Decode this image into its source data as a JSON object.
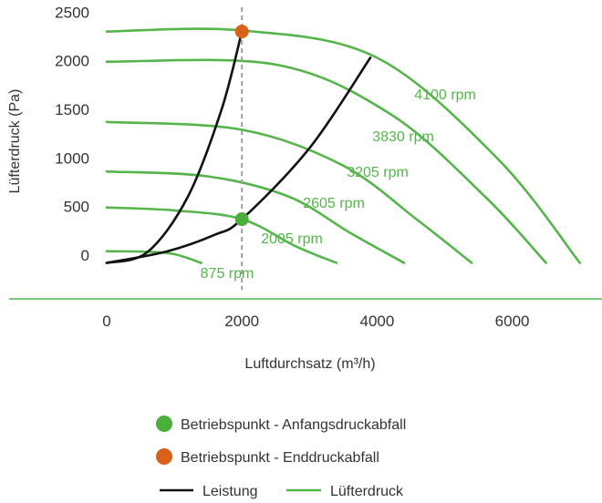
{
  "chart_data": {
    "type": "line",
    "xlabel": "Luftdurchsatz (m³/h)",
    "ylabel": "Lüfterdruck (Pa)",
    "xticks": [
      0,
      2000,
      4000,
      6000
    ],
    "yticks": [
      0,
      500,
      1000,
      1500,
      2000,
      2500
    ],
    "grid": false,
    "legend_placement": "bottom-center",
    "colors": {
      "fan_curve": "#55b54a",
      "power_curve": "#111111",
      "initial_point": "#4caf3b",
      "final_point": "#d9621a",
      "reference_line": "#9e9e9e",
      "axis": "#55b54a"
    },
    "fan_curves": [
      {
        "label": "875 rpm",
        "points": [
          [
            0,
            40
          ],
          [
            600,
            35
          ],
          [
            1000,
            10
          ],
          [
            1400,
            -80
          ]
        ]
      },
      {
        "label": "2005 rpm",
        "points": [
          [
            0,
            490
          ],
          [
            1000,
            460
          ],
          [
            2000,
            370
          ],
          [
            2800,
            90
          ],
          [
            3400,
            -80
          ]
        ]
      },
      {
        "label": "2605 rpm",
        "points": [
          [
            0,
            860
          ],
          [
            1500,
            810
          ],
          [
            2700,
            600
          ],
          [
            3600,
            230
          ],
          [
            4400,
            -80
          ]
        ]
      },
      {
        "label": "3205 rpm",
        "points": [
          [
            0,
            1370
          ],
          [
            2000,
            1290
          ],
          [
            3500,
            920
          ],
          [
            4600,
            360
          ],
          [
            5400,
            -80
          ]
        ]
      },
      {
        "label": "3830 rpm",
        "points": [
          [
            0,
            1990
          ],
          [
            2500,
            1960
          ],
          [
            4200,
            1450
          ],
          [
            5600,
            600
          ],
          [
            6500,
            -80
          ]
        ]
      },
      {
        "label": "4100 rpm",
        "points": [
          [
            0,
            2300
          ],
          [
            2000,
            2310
          ],
          [
            4000,
            2030
          ],
          [
            5800,
            980
          ],
          [
            7000,
            -80
          ]
        ]
      }
    ],
    "power_curves": [
      {
        "points": [
          [
            0,
            -80
          ],
          [
            600,
            30
          ],
          [
            1200,
            600
          ],
          [
            1700,
            1500
          ],
          [
            2000,
            2300
          ]
        ]
      },
      {
        "points": [
          [
            0,
            -80
          ],
          [
            900,
            40
          ],
          [
            1600,
            210
          ],
          [
            2000,
            370
          ],
          [
            3000,
            1100
          ],
          [
            3900,
            2030
          ]
        ]
      }
    ],
    "operating_points": [
      {
        "type": "initial",
        "x": 2000,
        "y": 370
      },
      {
        "type": "final",
        "x": 2000,
        "y": 2300
      }
    ],
    "reference_line_x": 2000,
    "legend": [
      {
        "marker": "dot-green",
        "label": "Betriebspunkt - Anfangsdruckabfall"
      },
      {
        "marker": "dot-orange",
        "label": "Betriebspunkt - Enddruckabfall"
      },
      {
        "marker": "line-black",
        "label": "Leistung"
      },
      {
        "marker": "line-green",
        "label": "Lüfterdruck"
      }
    ]
  }
}
